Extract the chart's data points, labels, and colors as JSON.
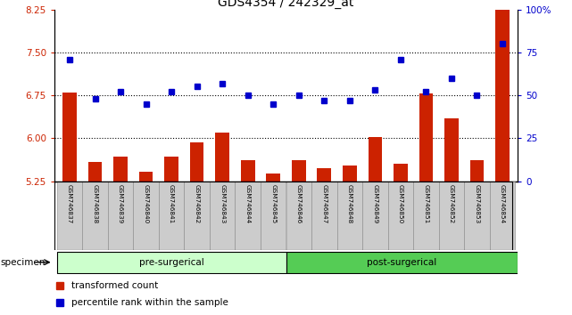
{
  "title": "GDS4354 / 242329_at",
  "samples": [
    "GSM746837",
    "GSM746838",
    "GSM746839",
    "GSM746840",
    "GSM746841",
    "GSM746842",
    "GSM746843",
    "GSM746844",
    "GSM746845",
    "GSM746846",
    "GSM746847",
    "GSM746848",
    "GSM746849",
    "GSM746850",
    "GSM746851",
    "GSM746852",
    "GSM746853",
    "GSM746854"
  ],
  "bar_values": [
    6.8,
    5.58,
    5.68,
    5.42,
    5.68,
    5.92,
    6.1,
    5.62,
    5.38,
    5.62,
    5.48,
    5.52,
    6.02,
    5.55,
    6.78,
    6.35,
    5.62,
    8.38
  ],
  "dot_values": [
    71,
    48,
    52,
    45,
    52,
    55,
    57,
    50,
    45,
    50,
    47,
    47,
    53,
    71,
    52,
    60,
    50,
    80
  ],
  "pre_surgical_count": 9,
  "post_surgical_count": 9,
  "ylim_left": [
    5.25,
    8.25
  ],
  "ylim_right": [
    0,
    100
  ],
  "yticks_left": [
    5.25,
    6.0,
    6.75,
    7.5,
    8.25
  ],
  "yticks_right": [
    0,
    25,
    50,
    75,
    100
  ],
  "bar_color": "#cc2200",
  "dot_color": "#0000cc",
  "bar_bottom": 5.25,
  "pre_color": "#ccffcc",
  "post_color": "#55cc55",
  "tick_label_bg": "#cccccc",
  "legend_bar_label": "transformed count",
  "legend_dot_label": "percentile rank within the sample",
  "specimen_label": "specimen",
  "pre_label": "pre-surgerical",
  "post_label": "post-surgerical",
  "gridlines": [
    6.0,
    6.75,
    7.5
  ]
}
